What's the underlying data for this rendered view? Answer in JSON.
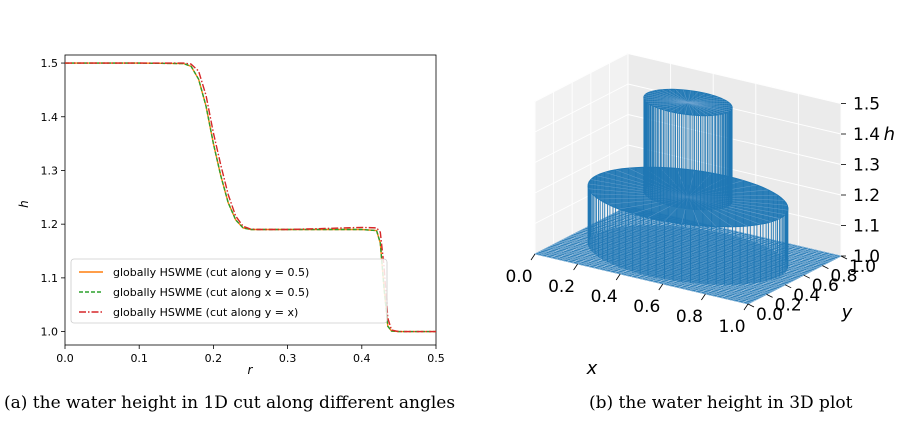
{
  "chart_data": [
    {
      "type": "line",
      "xlabel": "r",
      "ylabel": "h",
      "xlim": [
        0.0,
        0.5
      ],
      "ylim": [
        0.975,
        1.515
      ],
      "xticks": [
        "0.0",
        "0.1",
        "0.2",
        "0.3",
        "0.4",
        "0.5"
      ],
      "yticks": [
        "1.0",
        "1.1",
        "1.2",
        "1.3",
        "1.4",
        "1.5"
      ],
      "legend_position": "lower-left",
      "series": [
        {
          "name": "globally HSWME (cut along y = 0.5)",
          "color": "#ff7f0e",
          "style": "solid",
          "x": [
            0.0,
            0.1,
            0.16,
            0.17,
            0.18,
            0.19,
            0.2,
            0.21,
            0.22,
            0.23,
            0.24,
            0.25,
            0.26,
            0.3,
            0.35,
            0.4,
            0.42,
            0.425,
            0.43,
            0.435,
            0.44,
            0.45,
            0.5
          ],
          "y": [
            1.5,
            1.5,
            1.499,
            1.494,
            1.47,
            1.42,
            1.35,
            1.29,
            1.24,
            1.208,
            1.193,
            1.19,
            1.19,
            1.19,
            1.19,
            1.19,
            1.188,
            1.165,
            1.08,
            1.01,
            1.001,
            1.0,
            1.0
          ]
        },
        {
          "name": "globally HSWME (cut along x = 0.5)",
          "color": "#2ca02c",
          "style": "dashed",
          "x": [
            0.0,
            0.1,
            0.16,
            0.17,
            0.18,
            0.19,
            0.2,
            0.21,
            0.22,
            0.23,
            0.24,
            0.25,
            0.26,
            0.3,
            0.35,
            0.4,
            0.42,
            0.425,
            0.43,
            0.435,
            0.44,
            0.45,
            0.5
          ],
          "y": [
            1.5,
            1.5,
            1.499,
            1.494,
            1.47,
            1.42,
            1.35,
            1.29,
            1.24,
            1.208,
            1.193,
            1.19,
            1.19,
            1.19,
            1.19,
            1.19,
            1.188,
            1.165,
            1.08,
            1.01,
            1.001,
            1.0,
            1.0
          ]
        },
        {
          "name": "globally HSWME (cut along y = x)",
          "color": "#d62728",
          "style": "dashdot",
          "x": [
            0.0,
            0.1,
            0.16,
            0.17,
            0.18,
            0.19,
            0.2,
            0.21,
            0.22,
            0.23,
            0.24,
            0.25,
            0.26,
            0.3,
            0.35,
            0.4,
            0.42,
            0.425,
            0.43,
            0.435,
            0.44,
            0.45,
            0.5
          ],
          "y": [
            1.5,
            1.5,
            1.5,
            1.498,
            1.485,
            1.44,
            1.37,
            1.31,
            1.255,
            1.215,
            1.196,
            1.191,
            1.19,
            1.19,
            1.192,
            1.194,
            1.193,
            1.185,
            1.12,
            1.025,
            1.003,
            1.0,
            1.0
          ]
        }
      ]
    },
    {
      "type": "surface",
      "xlabel": "x",
      "ylabel": "y",
      "zlabel": "h",
      "xticks": [
        "0.0",
        "0.2",
        "0.4",
        "0.6",
        "0.8",
        "1.0"
      ],
      "yticks": [
        "0.0",
        "0.2",
        "0.4",
        "0.6",
        "0.8",
        "1.0"
      ],
      "zticks": [
        "1.0",
        "1.1",
        "1.2",
        "1.3",
        "1.4",
        "1.5"
      ],
      "xlim": [
        0.0,
        1.0
      ],
      "ylim": [
        0.0,
        1.0
      ],
      "zlim": [
        1.0,
        1.5
      ],
      "color": "#1f77b4",
      "levels": [
        {
          "r_max": 0.19,
          "h": 1.5
        },
        {
          "r_max": 0.43,
          "h": 1.19
        },
        {
          "r_max": 0.71,
          "h": 1.0
        }
      ]
    }
  ],
  "captions": {
    "a": "(a) the water height in 1D cut along different angles",
    "b": "(b) the water height in 3D plot"
  }
}
